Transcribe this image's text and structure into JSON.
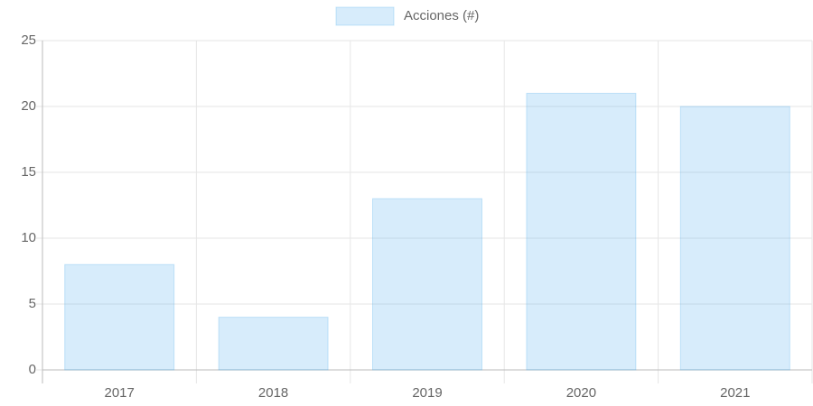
{
  "chart_data": {
    "type": "bar",
    "categories": [
      "2017",
      "2018",
      "2019",
      "2020",
      "2021"
    ],
    "series": [
      {
        "name": "Acciones (#)",
        "color": "#36a2eb",
        "values": [
          8,
          4,
          13,
          21,
          20
        ]
      }
    ],
    "ylim": [
      0,
      25
    ],
    "yticks": [
      0,
      5,
      10,
      15,
      20,
      25
    ],
    "grid": true,
    "legend": "top"
  }
}
